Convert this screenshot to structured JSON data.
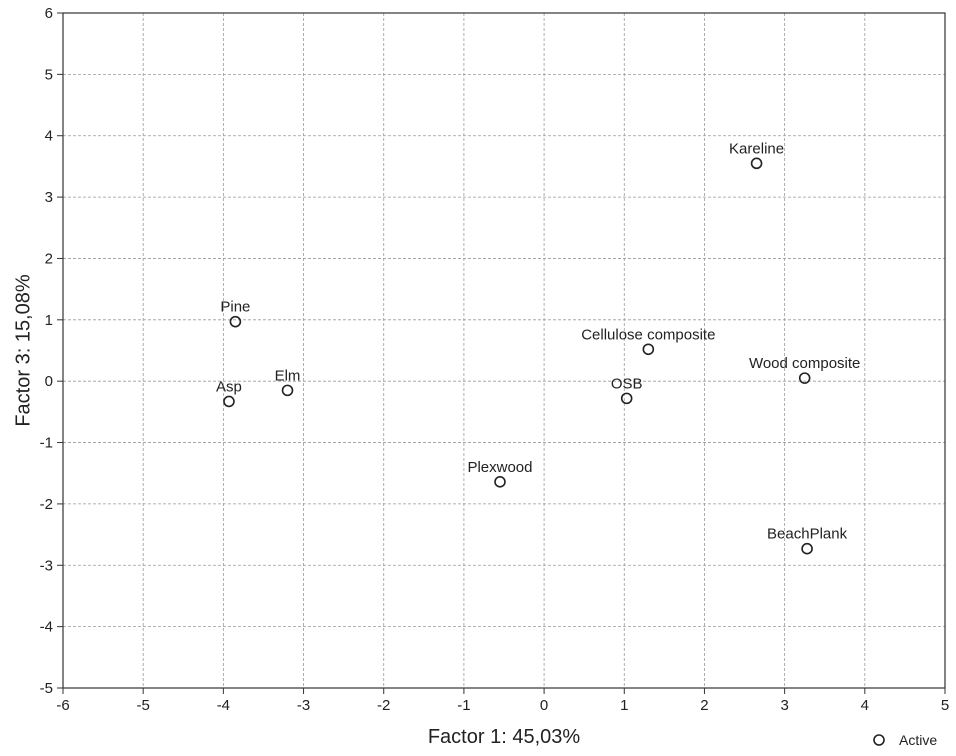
{
  "chart_data": {
    "type": "scatter",
    "xlabel": "Factor 1: 45,03%",
    "ylabel": "Factor 3: 15,08%",
    "xlim": [
      -6,
      5
    ],
    "ylim": [
      -5,
      6
    ],
    "grid": true,
    "legend_position": "bottom-right",
    "x_ticks": [
      "-6",
      "-5",
      "-4",
      "-3",
      "-2",
      "-1",
      "0",
      "1",
      "2",
      "3",
      "4",
      "5"
    ],
    "y_ticks": [
      "6",
      "5",
      "4",
      "3",
      "2",
      "1",
      "0",
      "-1",
      "-2",
      "-3",
      "-4",
      "-5"
    ],
    "series": [
      {
        "name": "Active",
        "marker": "open-circle",
        "points": [
          {
            "label": "Kareline",
            "x": 2.65,
            "y": 3.55
          },
          {
            "label": "Pine",
            "x": -3.85,
            "y": 0.97
          },
          {
            "label": "Cellulose composite",
            "x": 1.3,
            "y": 0.52
          },
          {
            "label": "Wood composite",
            "x": 3.25,
            "y": 0.05
          },
          {
            "label": "Asp",
            "x": -3.93,
            "y": -0.33
          },
          {
            "label": "Elm",
            "x": -3.2,
            "y": -0.15
          },
          {
            "label": "OSB",
            "x": 1.03,
            "y": -0.28
          },
          {
            "label": "Plexwood",
            "x": -0.55,
            "y": -1.64
          },
          {
            "label": "BeachPlank",
            "x": 3.28,
            "y": -2.73
          }
        ]
      }
    ]
  },
  "colors": {
    "frame": "#333333",
    "grid": "#9a9a9a",
    "marker": "#222222",
    "background": "#ffffff"
  }
}
